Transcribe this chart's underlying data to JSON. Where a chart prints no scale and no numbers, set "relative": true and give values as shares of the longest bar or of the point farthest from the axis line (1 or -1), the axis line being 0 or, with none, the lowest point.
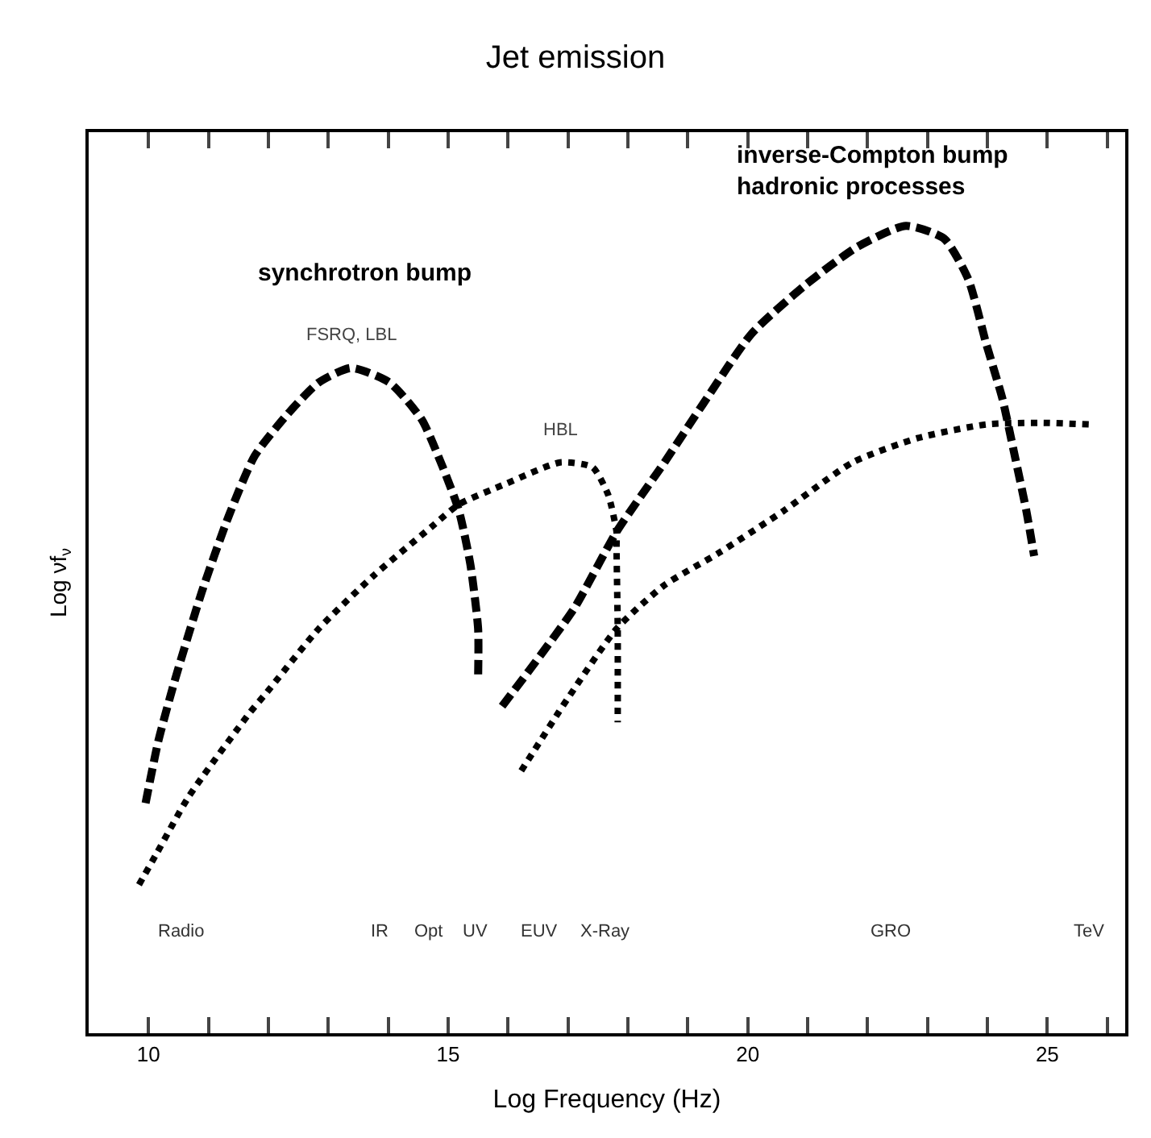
{
  "chart_data": {
    "type": "line",
    "title": "Jet emission",
    "xlabel": "Log Frequency (Hz)",
    "ylabel": "Log νf$_{ν}$",
    "relative": true,
    "legend": false,
    "xlim": [
      9.0,
      26.3
    ],
    "xticks": [
      10,
      {
        "value": 11,
        "label": null
      },
      {
        "value": 12,
        "label": null
      },
      {
        "value": 13,
        "label": null
      },
      {
        "value": 14,
        "label": null
      },
      15,
      {
        "value": 16,
        "label": null
      },
      {
        "value": 17,
        "label": null
      },
      {
        "value": 18,
        "label": null
      },
      {
        "value": 19,
        "label": null
      },
      20,
      {
        "value": 21,
        "label": null
      },
      {
        "value": 22,
        "label": null
      },
      {
        "value": 23,
        "label": null
      },
      {
        "value": 24,
        "label": null
      },
      25,
      {
        "value": 26,
        "label": null
      }
    ],
    "series": [
      {
        "name": "FSRQ, LBL",
        "color": "#000000",
        "line_style": "dashed",
        "x": [
          9.95,
          10.16,
          10.43,
          10.89,
          11.34,
          11.77,
          12.31,
          12.84,
          13.38,
          14.02,
          14.56,
          14.91,
          15.18,
          15.37,
          15.5,
          15.5
        ],
        "values": [
          0.285,
          0.361,
          0.435,
          0.547,
          0.641,
          0.715,
          0.766,
          0.806,
          0.824,
          0.806,
          0.76,
          0.701,
          0.647,
          0.581,
          0.501,
          0.441
        ]
      },
      {
        "name": "HBL",
        "color": "#000000",
        "line_style": "dotted",
        "x": [
          9.84,
          10.13,
          10.67,
          11.69,
          11.96,
          12.84,
          13.76,
          14.72,
          15.18,
          15.98,
          16.87,
          17.41,
          17.67,
          17.81,
          17.81,
          17.83,
          17.83
        ],
        "values": [
          0.184,
          0.222,
          0.293,
          0.397,
          0.421,
          0.501,
          0.567,
          0.627,
          0.655,
          0.681,
          0.707,
          0.701,
          0.667,
          0.621,
          0.601,
          0.501,
          0.385
        ]
      },
      {
        "color": "#000000",
        "line_style": "dashed",
        "x": [
          15.9,
          16.47,
          17.11,
          17.81,
          18.61,
          19.26,
          20.06,
          20.95,
          21.83,
          22.64,
          23.28,
          23.68,
          23.98,
          24.25,
          24.44,
          24.65,
          24.78
        ],
        "values": [
          0.405,
          0.461,
          0.527,
          0.621,
          0.707,
          0.78,
          0.866,
          0.926,
          0.974,
          1.0,
          0.984,
          0.934,
          0.854,
          0.786,
          0.721,
          0.647,
          0.591
        ]
      },
      {
        "color": "#000000",
        "line_style": "dotted",
        "x": [
          16.22,
          16.84,
          17.0,
          17.81,
          18.61,
          19.52,
          20.6,
          21.75,
          22.83,
          23.98,
          24.89,
          25.7
        ],
        "values": [
          0.325,
          0.397,
          0.415,
          0.501,
          0.555,
          0.595,
          0.647,
          0.707,
          0.737,
          0.754,
          0.756,
          0.754
        ]
      }
    ],
    "annotations": [
      "synchrotron bump",
      "inverse-Compton bump\nhadronic processes",
      "Radio",
      "IR",
      "Opt",
      "UV",
      "EUV",
      "X-Ray",
      "GRO",
      "TeV"
    ]
  }
}
